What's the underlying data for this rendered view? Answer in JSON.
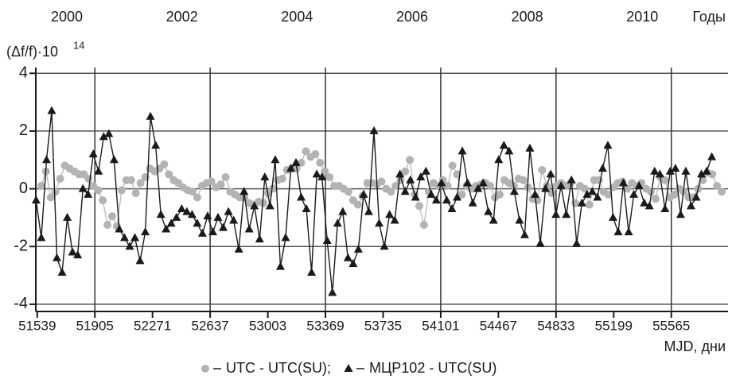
{
  "chart_data": {
    "type": "line",
    "x_label": "MJD, дни",
    "y_label": "(Δf/f)·10",
    "y_label_exponent": "14",
    "x2_label": "Годы",
    "xlim": [
      51530,
      55925
    ],
    "xticks": [
      51539,
      51905,
      52271,
      52637,
      53003,
      53369,
      53735,
      54101,
      54467,
      54833,
      55199,
      55565
    ],
    "x2lim": [
      1999.96,
      2011.99
    ],
    "x2ticks": [
      {
        "value": 2000.5,
        "label": "2000"
      },
      {
        "value": 2002.5,
        "label": "2002"
      },
      {
        "value": 2004.5,
        "label": "2004"
      },
      {
        "value": 2006.5,
        "label": "2006"
      },
      {
        "value": 2008.5,
        "label": "2008"
      },
      {
        "value": 2010.5,
        "label": "2010"
      }
    ],
    "ylim": [
      -4.25,
      4.2
    ],
    "yticks": [
      4,
      2,
      0,
      -2,
      -4
    ],
    "grid": true,
    "legend": "bottom",
    "series": [
      {
        "name": "UTC - UTC(SU);",
        "marker": "circle",
        "color": "#b3b3b3",
        "x": [
          51565,
          51595,
          51625,
          51655,
          51685,
          51715,
          51745,
          51775,
          51805,
          51835,
          51865,
          51895,
          51925,
          51955,
          51985,
          52015,
          52045,
          52075,
          52105,
          52135,
          52165,
          52195,
          52225,
          52255,
          52285,
          52315,
          52345,
          52375,
          52405,
          52435,
          52465,
          52495,
          52525,
          52555,
          52585,
          52615,
          52645,
          52675,
          52705,
          52735,
          52765,
          52795,
          52825,
          52855,
          52885,
          52915,
          52945,
          52975,
          53005,
          53035,
          53065,
          53095,
          53125,
          53155,
          53185,
          53215,
          53245,
          53275,
          53305,
          53335,
          53365,
          53395,
          53425,
          53455,
          53485,
          53515,
          53545,
          53575,
          53605,
          53635,
          53665,
          53695,
          53725,
          53755,
          53785,
          53815,
          53845,
          53875,
          53905,
          53935,
          53965,
          53995,
          54025,
          54055,
          54085,
          54115,
          54145,
          54175,
          54205,
          54235,
          54265,
          54295,
          54325,
          54355,
          54385,
          54415,
          54445,
          54475,
          54505,
          54535,
          54565,
          54595,
          54625,
          54655,
          54685,
          54715,
          54745,
          54775,
          54805,
          54835,
          54865,
          54895,
          54925,
          54955,
          54985,
          55015,
          55045,
          55075,
          55105,
          55135,
          55165,
          55195,
          55225,
          55255,
          55285,
          55315,
          55345,
          55375,
          55405,
          55435,
          55465,
          55495,
          55525,
          55555,
          55585,
          55615,
          55645,
          55675,
          55705,
          55735,
          55765,
          55795,
          55825,
          55855,
          55885
        ],
        "values": [
          0.1,
          0.6,
          -0.3,
          -0.1,
          0.35,
          0.8,
          0.7,
          0.6,
          0.5,
          0.5,
          0.35,
          0.1,
          -0.05,
          -0.4,
          -1.25,
          -0.95,
          -1.3,
          -0.05,
          0.3,
          0.3,
          -0.15,
          0.2,
          0.4,
          0.7,
          0.6,
          0.7,
          0.85,
          0.5,
          0.3,
          0.2,
          0.05,
          -0.05,
          -0.1,
          -0.3,
          0.1,
          0.2,
          0.25,
          0.05,
          0.15,
          0.4,
          -0.1,
          -0.2,
          -0.3,
          -0.3,
          -0.5,
          -0.55,
          -0.45,
          -0.5,
          -0.15,
          0.0,
          0.3,
          0.35,
          0.65,
          0.7,
          0.7,
          0.9,
          1.3,
          1.1,
          1.2,
          0.9,
          0.6,
          0.4,
          0.1,
          0.1,
          0.0,
          -0.1,
          -0.4,
          -0.55,
          -0.25,
          0.2,
          0.2,
          0.15,
          0.25,
          0.0,
          -0.1,
          0.1,
          0.3,
          0.6,
          1.0,
          -0.2,
          -0.6,
          -1.25,
          -0.1,
          0.2,
          0.1,
          0.3,
          0.1,
          0.8,
          0.5,
          -0.2,
          0.1,
          0.0,
          0.1,
          0.15,
          0.2,
          0.1,
          -0.3,
          -0.2,
          0.3,
          0.2,
          0.1,
          0.35,
          0.3,
          0.05,
          -0.35,
          -0.4,
          0.65,
          0.1,
          -0.15,
          0.1,
          0.2,
          0.1,
          0.2,
          -0.5,
          0.1,
          0.0,
          -0.55,
          0.3,
          0.3,
          -0.1,
          -0.2,
          0.05,
          0.2,
          0.25,
          0.0,
          0.2,
          0.1,
          0.2,
          0.0,
          -0.1,
          -0.35,
          0.4,
          0.3,
          -0.3,
          -0.2,
          0.0,
          -0.1,
          -0.3,
          -0.3,
          0.0,
          0.3,
          0.55,
          0.5,
          0.1,
          -0.1
        ]
      },
      {
        "name": "МЦР102 - UTC(SU)",
        "marker": "triangle",
        "color": "#1a1a1a",
        "x": [
          51532,
          51565,
          51598,
          51631,
          51664,
          51697,
          51730,
          51763,
          51796,
          51829,
          51862,
          51895,
          51928,
          51961,
          51994,
          52027,
          52060,
          52093,
          52126,
          52159,
          52192,
          52225,
          52258,
          52291,
          52324,
          52357,
          52390,
          52423,
          52456,
          52489,
          52522,
          52555,
          52588,
          52621,
          52654,
          52687,
          52720,
          52753,
          52786,
          52819,
          52852,
          52885,
          52918,
          52951,
          52984,
          53017,
          53050,
          53083,
          53116,
          53149,
          53182,
          53215,
          53248,
          53281,
          53314,
          53347,
          53380,
          53413,
          53446,
          53479,
          53512,
          53545,
          53578,
          53611,
          53644,
          53677,
          53710,
          53743,
          53776,
          53809,
          53842,
          53875,
          53908,
          53941,
          53974,
          54007,
          54040,
          54073,
          54106,
          54139,
          54172,
          54205,
          54238,
          54271,
          54304,
          54337,
          54370,
          54403,
          54436,
          54469,
          54502,
          54535,
          54568,
          54601,
          54634,
          54667,
          54700,
          54733,
          54766,
          54799,
          54832,
          54865,
          54898,
          54931,
          54964,
          54997,
          55030,
          55063,
          55096,
          55129,
          55162,
          55195,
          55228,
          55261,
          55294,
          55327,
          55360,
          55393,
          55426,
          55459,
          55492,
          55525,
          55558,
          55591,
          55624,
          55657,
          55690,
          55723,
          55756,
          55789,
          55822
        ],
        "values": [
          -0.4,
          -1.7,
          1.0,
          2.7,
          -2.4,
          -2.9,
          -1.0,
          -2.2,
          -2.3,
          0.0,
          -0.2,
          1.2,
          0.6,
          1.8,
          1.9,
          1.0,
          -1.4,
          -1.7,
          -2.0,
          -1.7,
          -2.5,
          -1.5,
          2.5,
          1.5,
          -0.9,
          -1.4,
          -1.2,
          -1.0,
          -0.7,
          -0.8,
          -0.9,
          -1.2,
          -1.55,
          -0.95,
          -1.5,
          -1.0,
          -1.35,
          -0.8,
          -1.1,
          -2.1,
          -0.1,
          -1.4,
          -0.6,
          -1.75,
          0.4,
          -0.6,
          1.0,
          -2.7,
          -1.7,
          0.7,
          0.9,
          -0.3,
          -0.7,
          -2.9,
          0.5,
          0.4,
          -1.8,
          -3.6,
          -1.2,
          -0.8,
          -2.4,
          -2.6,
          -2.1,
          -0.2,
          -0.8,
          2.0,
          -1.2,
          -2.0,
          -0.9,
          -1.1,
          0.5,
          -0.1,
          0.3,
          -0.3,
          0.4,
          0.6,
          -0.2,
          -0.4,
          0.2,
          -0.4,
          -0.7,
          -0.3,
          1.3,
          0.2,
          -0.5,
          0.0,
          0.2,
          -0.8,
          -1.1,
          1.0,
          1.5,
          1.3,
          -0.1,
          -1.1,
          -1.6,
          1.4,
          -0.2,
          -1.9,
          0.0,
          0.5,
          -0.9,
          0.1,
          -0.9,
          0.3,
          -1.9,
          -0.5,
          -0.2,
          -0.1,
          -0.3,
          0.7,
          1.5,
          -1.0,
          -1.5,
          0.2,
          -1.5,
          -0.2,
          0.1,
          -0.5,
          -0.6,
          0.6,
          0.5,
          -0.7,
          0.6,
          0.7,
          -0.9,
          0.6,
          -0.6,
          -0.3,
          0.5,
          0.6,
          1.1
        ]
      }
    ]
  }
}
